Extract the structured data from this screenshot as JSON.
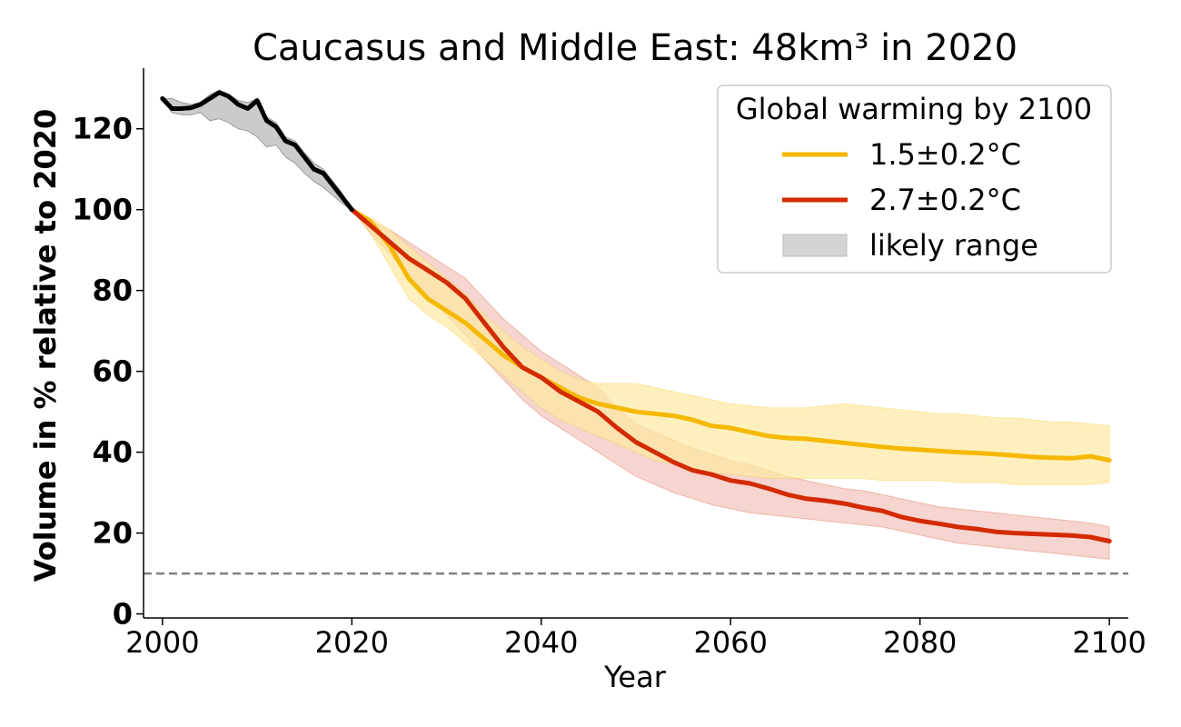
{
  "chart_data": {
    "type": "line",
    "title": "Caucasus and Middle East: 48km³ in 2020",
    "xlabel": "Year",
    "ylabel": "Volume in % relative to 2020",
    "xlim": [
      1998,
      2102
    ],
    "ylim": [
      -1,
      135
    ],
    "xticks": [
      2000,
      2020,
      2040,
      2060,
      2080,
      2100
    ],
    "yticks": [
      0,
      20,
      40,
      60,
      80,
      100,
      120
    ],
    "grid": false,
    "reference_line": {
      "y": 10,
      "style": "dashed",
      "color": "#808080"
    },
    "legend": {
      "title": "Global warming by 2100",
      "placement": "top-right",
      "entries": [
        "1.5±0.2°C",
        "2.7±0.2°C",
        "likely range"
      ]
    },
    "historical": {
      "color": "#000000",
      "band_color": "#c8c8c8",
      "x": [
        2000,
        2001,
        2002,
        2003,
        2004,
        2005,
        2006,
        2007,
        2008,
        2009,
        2010,
        2011,
        2012,
        2013,
        2014,
        2015,
        2016,
        2017,
        2018,
        2019,
        2020
      ],
      "values": [
        127.5,
        125,
        125,
        125.2,
        126,
        127.5,
        129,
        128,
        126,
        125,
        127,
        122,
        120.5,
        117,
        116,
        113,
        110,
        109,
        106,
        103,
        100
      ],
      "lower": [
        127.5,
        124,
        123.5,
        123.5,
        124,
        122,
        122.5,
        121.5,
        120,
        119.5,
        118,
        115.5,
        116,
        113,
        111.5,
        109,
        107,
        105.5,
        103.5,
        101.5,
        100
      ],
      "upper": [
        127.5,
        127.5,
        126.5,
        126,
        126.5,
        128.5,
        129.5,
        128.5,
        127,
        126.5,
        127.5,
        123,
        121.5,
        118,
        117,
        114,
        111.5,
        110,
        107,
        104,
        100
      ]
    },
    "x": [
      2020,
      2022,
      2024,
      2026,
      2028,
      2030,
      2032,
      2034,
      2036,
      2038,
      2040,
      2042,
      2044,
      2046,
      2048,
      2050,
      2052,
      2054,
      2056,
      2058,
      2060,
      2062,
      2064,
      2066,
      2068,
      2070,
      2072,
      2074,
      2076,
      2078,
      2080,
      2082,
      2084,
      2086,
      2088,
      2090,
      2092,
      2094,
      2096,
      2098,
      2100
    ],
    "series": [
      {
        "name": "1.5±0.2°C",
        "color": "#f5b800",
        "band_color": "#fde9a3",
        "values": [
          100,
          97,
          91,
          83,
          78,
          75,
          72,
          68,
          64,
          61,
          58.5,
          56,
          53.5,
          52,
          51,
          50,
          49.5,
          49,
          48,
          46.5,
          46,
          45,
          44,
          43.5,
          43.3,
          42.8,
          42.3,
          41.8,
          41.3,
          40.9,
          40.6,
          40.3,
          40,
          39.8,
          39.5,
          39.2,
          38.8,
          38.6,
          38.5,
          39,
          38
        ],
        "lower": [
          100,
          94,
          86,
          78,
          74,
          71,
          67,
          63,
          59,
          55,
          51,
          48,
          46,
          44,
          42,
          40,
          38,
          37,
          36,
          35,
          34.5,
          34,
          33.5,
          33.5,
          33.5,
          33.5,
          33.5,
          33.5,
          33,
          33,
          33,
          33,
          32.5,
          32.5,
          32.5,
          32,
          32,
          32,
          32,
          32,
          32.5
        ],
        "upper": [
          100,
          98,
          95,
          91,
          87,
          83,
          79,
          74,
          70,
          66,
          63,
          60,
          58,
          57,
          57,
          57,
          56,
          55,
          54,
          53,
          52,
          51.5,
          51,
          51,
          51,
          51.5,
          52,
          51.5,
          51,
          50.5,
          50,
          49.5,
          49.5,
          49,
          48.5,
          48.5,
          48,
          47.5,
          47.5,
          47,
          46.5
        ]
      },
      {
        "name": "2.7±0.2°C",
        "color": "#d42a00",
        "band_color": "#f2c2bb",
        "values": [
          100,
          96,
          92,
          88,
          85,
          82,
          78,
          72,
          66,
          61,
          58.5,
          55,
          52.5,
          50,
          46,
          42.5,
          40,
          37.5,
          35.5,
          34.5,
          33,
          32.3,
          31,
          29.5,
          28.5,
          28,
          27.3,
          26.3,
          25.5,
          24,
          23,
          22.3,
          21.5,
          21,
          20.3,
          20,
          19.8,
          19.6,
          19.4,
          19,
          18
        ],
        "lower": [
          100,
          94,
          89,
          84,
          79,
          74,
          69,
          63,
          58,
          53,
          49,
          46,
          43,
          40,
          37,
          34,
          32,
          30,
          28.5,
          27,
          26,
          25,
          24.5,
          24,
          23.5,
          23,
          22.5,
          22,
          21.5,
          20.5,
          19.5,
          18.5,
          17.5,
          17,
          16.5,
          16,
          15.5,
          15,
          14.5,
          14,
          13.5
        ],
        "upper": [
          100,
          97,
          95,
          92,
          89,
          86,
          83,
          78,
          73,
          69,
          65,
          62,
          59,
          56,
          51,
          47,
          45,
          43,
          41,
          39.5,
          38,
          37,
          35.5,
          34,
          33,
          32,
          31,
          30.5,
          29.5,
          28.5,
          27.5,
          26.5,
          26,
          25.5,
          25,
          24.5,
          24,
          23.5,
          23,
          22.5,
          21.5
        ]
      }
    ]
  }
}
